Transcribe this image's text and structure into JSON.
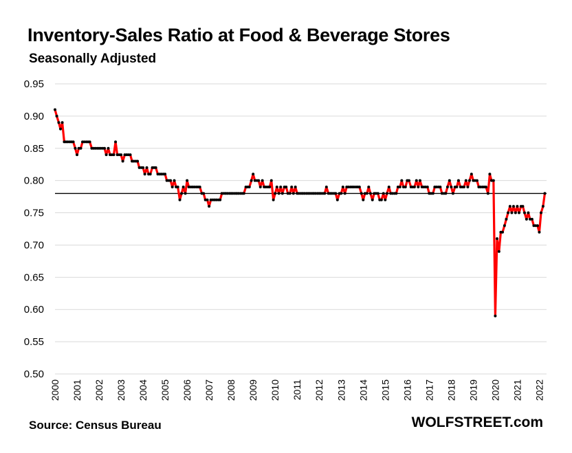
{
  "title": "Inventory-Sales  Ratio at Food & Beverage Stores",
  "subtitle": "Seasonally Adjusted",
  "source": "Source: Census Bureau",
  "brand": "WOLFSTREET.com",
  "colors": {
    "series": "#ff0000",
    "points": "#000000",
    "reference_line": "#000000",
    "grid": "#d9d9d9"
  },
  "chart_data": {
    "type": "line",
    "title": "Inventory-Sales  Ratio at Food & Beverage Stores",
    "subtitle": "Seasonally Adjusted",
    "xlabel": "",
    "ylabel": "",
    "xlim": [
      2000,
      2022.33
    ],
    "ylim": [
      0.5,
      0.95
    ],
    "yticks": [
      "0.50",
      "0.55",
      "0.60",
      "0.65",
      "0.70",
      "0.75",
      "0.80",
      "0.85",
      "0.90",
      "0.95"
    ],
    "xticks": [
      "2000",
      "2001",
      "2002",
      "2003",
      "2004",
      "2005",
      "2006",
      "2007",
      "2008",
      "2009",
      "2010",
      "2011",
      "2012",
      "2013",
      "2014",
      "2015",
      "2016",
      "2017",
      "2018",
      "2019",
      "2020",
      "2021",
      "2022"
    ],
    "grid": "horizontal",
    "reference_line": {
      "y": 0.78
    },
    "series": [
      {
        "points": [
          [
            2000.0,
            0.91
          ],
          [
            2000.08,
            0.9
          ],
          [
            2000.17,
            0.89
          ],
          [
            2000.25,
            0.88
          ],
          [
            2000.33,
            0.89
          ],
          [
            2000.42,
            0.86
          ],
          [
            2000.5,
            0.86
          ],
          [
            2000.58,
            0.86
          ],
          [
            2000.67,
            0.86
          ],
          [
            2000.75,
            0.86
          ],
          [
            2000.83,
            0.86
          ],
          [
            2000.92,
            0.85
          ],
          [
            2001.0,
            0.84
          ],
          [
            2001.08,
            0.85
          ],
          [
            2001.17,
            0.85
          ],
          [
            2001.25,
            0.86
          ],
          [
            2001.33,
            0.86
          ],
          [
            2001.42,
            0.86
          ],
          [
            2001.5,
            0.86
          ],
          [
            2001.58,
            0.86
          ],
          [
            2001.67,
            0.85
          ],
          [
            2001.75,
            0.85
          ],
          [
            2001.83,
            0.85
          ],
          [
            2001.92,
            0.85
          ],
          [
            2002.0,
            0.85
          ],
          [
            2002.08,
            0.85
          ],
          [
            2002.17,
            0.85
          ],
          [
            2002.25,
            0.85
          ],
          [
            2002.33,
            0.84
          ],
          [
            2002.42,
            0.85
          ],
          [
            2002.5,
            0.84
          ],
          [
            2002.58,
            0.84
          ],
          [
            2002.67,
            0.84
          ],
          [
            2002.75,
            0.86
          ],
          [
            2002.83,
            0.84
          ],
          [
            2002.92,
            0.84
          ],
          [
            2003.0,
            0.84
          ],
          [
            2003.08,
            0.83
          ],
          [
            2003.17,
            0.84
          ],
          [
            2003.25,
            0.84
          ],
          [
            2003.33,
            0.84
          ],
          [
            2003.42,
            0.84
          ],
          [
            2003.5,
            0.83
          ],
          [
            2003.58,
            0.83
          ],
          [
            2003.67,
            0.83
          ],
          [
            2003.75,
            0.83
          ],
          [
            2003.83,
            0.82
          ],
          [
            2003.92,
            0.82
          ],
          [
            2004.0,
            0.82
          ],
          [
            2004.08,
            0.81
          ],
          [
            2004.17,
            0.82
          ],
          [
            2004.25,
            0.81
          ],
          [
            2004.33,
            0.81
          ],
          [
            2004.42,
            0.82
          ],
          [
            2004.5,
            0.82
          ],
          [
            2004.58,
            0.82
          ],
          [
            2004.67,
            0.81
          ],
          [
            2004.75,
            0.81
          ],
          [
            2004.83,
            0.81
          ],
          [
            2004.92,
            0.81
          ],
          [
            2005.0,
            0.81
          ],
          [
            2005.08,
            0.8
          ],
          [
            2005.17,
            0.8
          ],
          [
            2005.25,
            0.8
          ],
          [
            2005.33,
            0.79
          ],
          [
            2005.42,
            0.8
          ],
          [
            2005.5,
            0.79
          ],
          [
            2005.58,
            0.79
          ],
          [
            2005.67,
            0.77
          ],
          [
            2005.75,
            0.78
          ],
          [
            2005.83,
            0.79
          ],
          [
            2005.92,
            0.78
          ],
          [
            2006.0,
            0.8
          ],
          [
            2006.08,
            0.79
          ],
          [
            2006.17,
            0.79
          ],
          [
            2006.25,
            0.79
          ],
          [
            2006.33,
            0.79
          ],
          [
            2006.42,
            0.79
          ],
          [
            2006.5,
            0.79
          ],
          [
            2006.58,
            0.79
          ],
          [
            2006.67,
            0.78
          ],
          [
            2006.75,
            0.78
          ],
          [
            2006.83,
            0.77
          ],
          [
            2006.92,
            0.77
          ],
          [
            2007.0,
            0.76
          ],
          [
            2007.08,
            0.77
          ],
          [
            2007.17,
            0.77
          ],
          [
            2007.25,
            0.77
          ],
          [
            2007.33,
            0.77
          ],
          [
            2007.42,
            0.77
          ],
          [
            2007.5,
            0.77
          ],
          [
            2007.58,
            0.78
          ],
          [
            2007.67,
            0.78
          ],
          [
            2007.75,
            0.78
          ],
          [
            2007.83,
            0.78
          ],
          [
            2007.92,
            0.78
          ],
          [
            2008.0,
            0.78
          ],
          [
            2008.08,
            0.78
          ],
          [
            2008.17,
            0.78
          ],
          [
            2008.25,
            0.78
          ],
          [
            2008.33,
            0.78
          ],
          [
            2008.42,
            0.78
          ],
          [
            2008.5,
            0.78
          ],
          [
            2008.58,
            0.78
          ],
          [
            2008.67,
            0.79
          ],
          [
            2008.75,
            0.79
          ],
          [
            2008.83,
            0.79
          ],
          [
            2008.92,
            0.8
          ],
          [
            2009.0,
            0.81
          ],
          [
            2009.08,
            0.8
          ],
          [
            2009.17,
            0.8
          ],
          [
            2009.25,
            0.8
          ],
          [
            2009.33,
            0.79
          ],
          [
            2009.42,
            0.8
          ],
          [
            2009.5,
            0.79
          ],
          [
            2009.58,
            0.79
          ],
          [
            2009.67,
            0.79
          ],
          [
            2009.75,
            0.79
          ],
          [
            2009.83,
            0.8
          ],
          [
            2009.92,
            0.77
          ],
          [
            2010.0,
            0.78
          ],
          [
            2010.08,
            0.79
          ],
          [
            2010.17,
            0.78
          ],
          [
            2010.25,
            0.79
          ],
          [
            2010.33,
            0.78
          ],
          [
            2010.42,
            0.79
          ],
          [
            2010.5,
            0.79
          ],
          [
            2010.58,
            0.78
          ],
          [
            2010.67,
            0.78
          ],
          [
            2010.75,
            0.79
          ],
          [
            2010.83,
            0.78
          ],
          [
            2010.92,
            0.79
          ],
          [
            2011.0,
            0.78
          ],
          [
            2011.08,
            0.78
          ],
          [
            2011.17,
            0.78
          ],
          [
            2011.25,
            0.78
          ],
          [
            2011.33,
            0.78
          ],
          [
            2011.42,
            0.78
          ],
          [
            2011.5,
            0.78
          ],
          [
            2011.58,
            0.78
          ],
          [
            2011.67,
            0.78
          ],
          [
            2011.75,
            0.78
          ],
          [
            2011.83,
            0.78
          ],
          [
            2011.92,
            0.78
          ],
          [
            2012.0,
            0.78
          ],
          [
            2012.08,
            0.78
          ],
          [
            2012.17,
            0.78
          ],
          [
            2012.25,
            0.78
          ],
          [
            2012.33,
            0.79
          ],
          [
            2012.42,
            0.78
          ],
          [
            2012.5,
            0.78
          ],
          [
            2012.58,
            0.78
          ],
          [
            2012.67,
            0.78
          ],
          [
            2012.75,
            0.78
          ],
          [
            2012.83,
            0.77
          ],
          [
            2012.92,
            0.78
          ],
          [
            2013.0,
            0.78
          ],
          [
            2013.08,
            0.79
          ],
          [
            2013.17,
            0.78
          ],
          [
            2013.25,
            0.79
          ],
          [
            2013.33,
            0.79
          ],
          [
            2013.42,
            0.79
          ],
          [
            2013.5,
            0.79
          ],
          [
            2013.58,
            0.79
          ],
          [
            2013.67,
            0.79
          ],
          [
            2013.75,
            0.79
          ],
          [
            2013.83,
            0.79
          ],
          [
            2013.92,
            0.78
          ],
          [
            2014.0,
            0.77
          ],
          [
            2014.08,
            0.78
          ],
          [
            2014.17,
            0.78
          ],
          [
            2014.25,
            0.79
          ],
          [
            2014.33,
            0.78
          ],
          [
            2014.42,
            0.77
          ],
          [
            2014.5,
            0.78
          ],
          [
            2014.58,
            0.78
          ],
          [
            2014.67,
            0.78
          ],
          [
            2014.75,
            0.77
          ],
          [
            2014.83,
            0.77
          ],
          [
            2014.92,
            0.78
          ],
          [
            2015.0,
            0.77
          ],
          [
            2015.08,
            0.78
          ],
          [
            2015.17,
            0.79
          ],
          [
            2015.25,
            0.78
          ],
          [
            2015.33,
            0.78
          ],
          [
            2015.42,
            0.78
          ],
          [
            2015.5,
            0.78
          ],
          [
            2015.58,
            0.79
          ],
          [
            2015.67,
            0.79
          ],
          [
            2015.75,
            0.8
          ],
          [
            2015.83,
            0.79
          ],
          [
            2015.92,
            0.79
          ],
          [
            2016.0,
            0.8
          ],
          [
            2016.08,
            0.8
          ],
          [
            2016.17,
            0.79
          ],
          [
            2016.25,
            0.79
          ],
          [
            2016.33,
            0.79
          ],
          [
            2016.42,
            0.8
          ],
          [
            2016.5,
            0.79
          ],
          [
            2016.58,
            0.8
          ],
          [
            2016.67,
            0.79
          ],
          [
            2016.75,
            0.79
          ],
          [
            2016.83,
            0.79
          ],
          [
            2016.92,
            0.79
          ],
          [
            2017.0,
            0.78
          ],
          [
            2017.08,
            0.78
          ],
          [
            2017.17,
            0.78
          ],
          [
            2017.25,
            0.79
          ],
          [
            2017.33,
            0.79
          ],
          [
            2017.42,
            0.79
          ],
          [
            2017.5,
            0.79
          ],
          [
            2017.58,
            0.78
          ],
          [
            2017.67,
            0.78
          ],
          [
            2017.75,
            0.78
          ],
          [
            2017.83,
            0.79
          ],
          [
            2017.92,
            0.8
          ],
          [
            2018.0,
            0.79
          ],
          [
            2018.08,
            0.78
          ],
          [
            2018.17,
            0.79
          ],
          [
            2018.25,
            0.79
          ],
          [
            2018.33,
            0.8
          ],
          [
            2018.42,
            0.79
          ],
          [
            2018.5,
            0.79
          ],
          [
            2018.58,
            0.79
          ],
          [
            2018.67,
            0.8
          ],
          [
            2018.75,
            0.79
          ],
          [
            2018.83,
            0.8
          ],
          [
            2018.92,
            0.81
          ],
          [
            2019.0,
            0.8
          ],
          [
            2019.08,
            0.8
          ],
          [
            2019.17,
            0.8
          ],
          [
            2019.25,
            0.79
          ],
          [
            2019.33,
            0.79
          ],
          [
            2019.42,
            0.79
          ],
          [
            2019.5,
            0.79
          ],
          [
            2019.58,
            0.79
          ],
          [
            2019.67,
            0.78
          ],
          [
            2019.75,
            0.81
          ],
          [
            2019.83,
            0.8
          ],
          [
            2019.92,
            0.8
          ],
          [
            2020.0,
            0.59
          ],
          [
            2020.08,
            0.71
          ],
          [
            2020.17,
            0.69
          ],
          [
            2020.25,
            0.72
          ],
          [
            2020.33,
            0.72
          ],
          [
            2020.42,
            0.73
          ],
          [
            2020.5,
            0.74
          ],
          [
            2020.58,
            0.75
          ],
          [
            2020.67,
            0.76
          ],
          [
            2020.75,
            0.75
          ],
          [
            2020.83,
            0.76
          ],
          [
            2020.92,
            0.75
          ],
          [
            2021.0,
            0.76
          ],
          [
            2021.08,
            0.75
          ],
          [
            2021.17,
            0.76
          ],
          [
            2021.25,
            0.76
          ],
          [
            2021.33,
            0.75
          ],
          [
            2021.42,
            0.74
          ],
          [
            2021.5,
            0.75
          ],
          [
            2021.58,
            0.74
          ],
          [
            2021.67,
            0.74
          ],
          [
            2021.75,
            0.73
          ],
          [
            2021.83,
            0.73
          ],
          [
            2021.92,
            0.73
          ],
          [
            2022.0,
            0.72
          ],
          [
            2022.08,
            0.75
          ],
          [
            2022.17,
            0.76
          ],
          [
            2022.25,
            0.78
          ]
        ]
      }
    ]
  }
}
